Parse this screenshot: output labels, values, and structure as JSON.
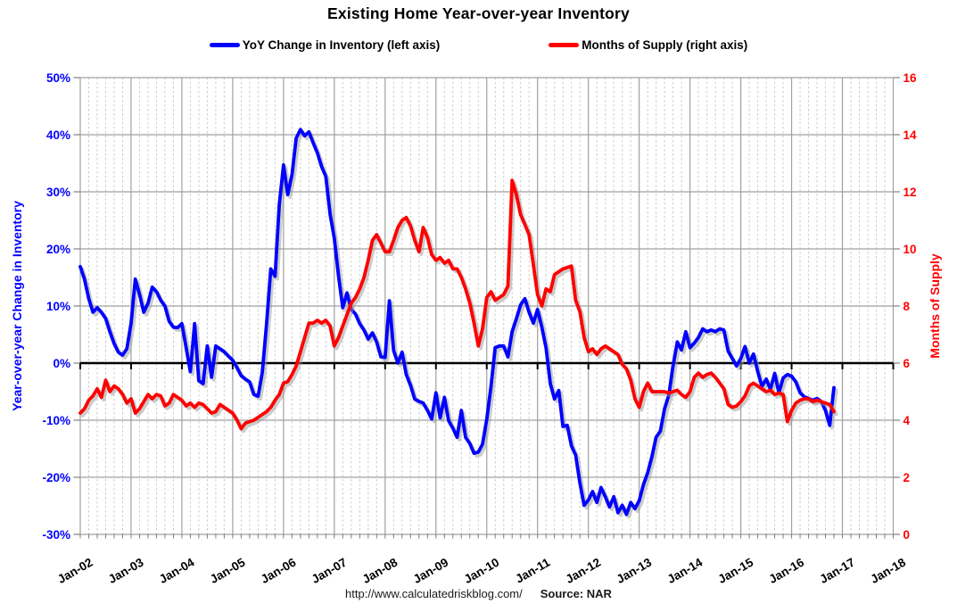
{
  "title": "Existing Home Year-over-year Inventory",
  "legend": {
    "items": [
      {
        "label": "YoY Change in Inventory (left axis)",
        "color": "#0000ff"
      },
      {
        "label": "Months of Supply (right axis)",
        "color": "#ff0000"
      }
    ]
  },
  "footer": {
    "url": "http://www.calculatedriskblog.com/",
    "source": "Source: NAR"
  },
  "chart_data": {
    "type": "line",
    "title": "Existing Home Year-over-year Inventory",
    "background": "#ffffff",
    "grid": {
      "major_color": "#a0a0a0",
      "minor_color": "#cccccc",
      "zero_line_color": "#000000",
      "minor_every_months": 2
    },
    "x_axis": {
      "start": "Jan-2002",
      "end": "Jan-2018",
      "interval": "monthly",
      "tick_labels": [
        "Jan-02",
        "Jan-03",
        "Jan-04",
        "Jan-05",
        "Jan-06",
        "Jan-07",
        "Jan-08",
        "Jan-09",
        "Jan-10",
        "Jan-11",
        "Jan-12",
        "Jan-13",
        "Jan-14",
        "Jan-15",
        "Jan-16",
        "Jan-17",
        "Jan-18"
      ]
    },
    "left_axis": {
      "title": "Year-over-year Change in Inventory",
      "color": "#0000ff",
      "min": -30,
      "max": 50,
      "tick_labels": [
        "50%",
        "40%",
        "30%",
        "20%",
        "10%",
        "0%",
        "-10%",
        "-20%",
        "-30%"
      ]
    },
    "right_axis": {
      "title": "Months of Supply",
      "color": "#ff0000",
      "min": 0,
      "max": 16,
      "tick_labels": [
        "16",
        "14",
        "12",
        "10",
        "8",
        "6",
        "4",
        "2",
        "0"
      ]
    },
    "series": [
      {
        "name": "YoY Change in Inventory (left axis)",
        "axis": "left",
        "color": "#0000ff",
        "unit": "percent",
        "start": "2002-01",
        "interval": "monthly",
        "values": [
          16.9,
          14.7,
          11.3,
          8.9,
          9.7,
          8.9,
          7.8,
          5.5,
          3.4,
          1.9,
          1.4,
          2.5,
          7.0,
          14.7,
          12.0,
          8.9,
          10.5,
          13.3,
          12.5,
          11.0,
          10.0,
          7.3,
          6.3,
          6.2,
          6.9,
          2.7,
          -1.5,
          6.9,
          -3.1,
          -3.6,
          3.0,
          -2.5,
          3.0,
          2.5,
          2.0,
          1.2,
          0.5,
          -0.8,
          -2.2,
          -2.8,
          -3.3,
          -5.5,
          -5.8,
          -1.6,
          6.9,
          16.5,
          15.2,
          27.7,
          34.7,
          29.5,
          33.0,
          39.4,
          40.9,
          39.8,
          40.5,
          38.6,
          36.8,
          34.4,
          32.7,
          26.1,
          21.9,
          15.2,
          9.7,
          12.3,
          9.4,
          8.6,
          6.9,
          5.8,
          4.2,
          5.3,
          3.7,
          1.1,
          1.0,
          10.9,
          2.2,
          0.0,
          1.9,
          -2.0,
          -3.9,
          -6.3,
          -6.7,
          -7.0,
          -8.3,
          -9.8,
          -5.2,
          -9.6,
          -6.0,
          -10.1,
          -11.4,
          -13.0,
          -8.3,
          -13.0,
          -14.1,
          -15.8,
          -15.6,
          -14.2,
          -9.8,
          -4.1,
          2.7,
          3.0,
          3.0,
          1.1,
          5.5,
          7.8,
          10.2,
          11.3,
          8.9,
          7.0,
          9.4,
          6.3,
          2.7,
          -3.6,
          -6.3,
          -4.8,
          -11.1,
          -10.9,
          -14.5,
          -16.1,
          -21.0,
          -24.9,
          -24.0,
          -22.5,
          -24.4,
          -21.8,
          -23.4,
          -25.2,
          -23.4,
          -26.2,
          -24.9,
          -26.5,
          -24.4,
          -25.5,
          -24.1,
          -21.3,
          -19.2,
          -16.4,
          -13.0,
          -11.9,
          -8.0,
          -5.6,
          -0.5,
          3.7,
          2.3,
          5.5,
          2.7,
          3.5,
          4.5,
          6.0,
          5.5,
          5.8,
          5.5,
          6.0,
          5.8,
          2.1,
          0.8,
          -0.5,
          0.8,
          2.9,
          0.0,
          1.6,
          -1.5,
          -4.1,
          -2.8,
          -4.6,
          -1.8,
          -5.2,
          -2.6,
          -2.0,
          -2.3,
          -3.3,
          -5.2,
          -5.9,
          -6.2,
          -6.5,
          -6.2,
          -6.7,
          -8.3,
          -10.9,
          -4.3
        ]
      },
      {
        "name": "Months of Supply (right axis)",
        "axis": "right",
        "color": "#ff0000",
        "unit": "months",
        "start": "2002-01",
        "interval": "monthly",
        "values": [
          4.25,
          4.4,
          4.7,
          4.85,
          5.1,
          4.8,
          5.4,
          5.0,
          5.2,
          5.1,
          4.9,
          4.6,
          4.75,
          4.25,
          4.4,
          4.65,
          4.9,
          4.75,
          4.9,
          4.85,
          4.5,
          4.6,
          4.9,
          4.8,
          4.7,
          4.5,
          4.6,
          4.45,
          4.6,
          4.55,
          4.4,
          4.25,
          4.3,
          4.55,
          4.45,
          4.35,
          4.25,
          4.0,
          3.7,
          3.9,
          3.95,
          4.0,
          4.1,
          4.2,
          4.3,
          4.45,
          4.7,
          4.9,
          5.3,
          5.35,
          5.6,
          5.9,
          6.4,
          6.9,
          7.4,
          7.4,
          7.5,
          7.4,
          7.5,
          7.3,
          6.6,
          6.9,
          7.3,
          7.7,
          8.1,
          8.3,
          8.6,
          9.0,
          9.6,
          10.3,
          10.5,
          10.2,
          9.9,
          9.9,
          10.3,
          10.75,
          11.0,
          11.1,
          10.8,
          10.3,
          9.9,
          10.75,
          10.4,
          9.8,
          9.6,
          9.7,
          9.5,
          9.6,
          9.3,
          9.3,
          9.0,
          8.6,
          8.1,
          7.4,
          6.6,
          7.2,
          8.3,
          8.5,
          8.2,
          8.3,
          8.4,
          8.7,
          12.4,
          11.9,
          11.2,
          10.85,
          10.5,
          9.45,
          8.4,
          8.0,
          8.6,
          8.5,
          9.1,
          9.2,
          9.3,
          9.35,
          9.4,
          8.2,
          7.8,
          6.9,
          6.4,
          6.5,
          6.3,
          6.5,
          6.6,
          6.5,
          6.4,
          6.3,
          5.95,
          5.8,
          5.4,
          4.75,
          4.45,
          5.0,
          5.3,
          5.0,
          5.0,
          5.0,
          5.0,
          4.95,
          5.0,
          5.05,
          4.9,
          4.8,
          5.0,
          5.5,
          5.65,
          5.5,
          5.6,
          5.65,
          5.5,
          5.3,
          5.1,
          4.55,
          4.45,
          4.5,
          4.65,
          4.85,
          5.2,
          5.3,
          5.2,
          5.1,
          5.0,
          5.05,
          4.9,
          4.95,
          4.9,
          3.95,
          4.35,
          4.6,
          4.7,
          4.75,
          4.75,
          4.65,
          4.7,
          4.65,
          4.6,
          4.55,
          4.3
        ]
      }
    ]
  }
}
